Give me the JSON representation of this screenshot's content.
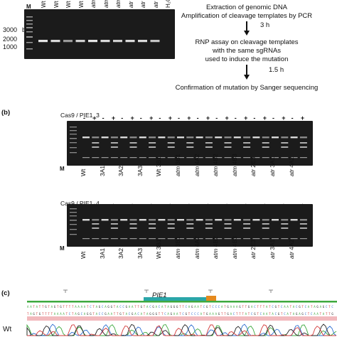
{
  "panel_a": {
    "marker": "M",
    "bp_label": "bp",
    "bp_ticks": [
      "3000",
      "2000",
      "1000"
    ],
    "lanes": [
      "Wt",
      "Wt",
      "Wt",
      "Wt",
      "atm",
      "atm",
      "atm",
      "atr",
      "atr",
      "atr",
      "H₂O"
    ],
    "flow": {
      "step1_line1": "Extraction of genomic DNA",
      "step1_line2": "Amplification of cleavage templates by PCR",
      "time1": "3 h",
      "step2_line1": "RNP assay on cleavage templates",
      "step2_line2": "with the same sgRNAs",
      "step2_line3": "used to induce the mutation",
      "time2": "1.5 h",
      "step3": "Confirmation of mutation by Sanger sequencing"
    }
  },
  "panel_b": {
    "label": "(b)",
    "gel1": {
      "title": "Cas9 / PIE1_3",
      "signs": [
        "-",
        "+",
        "-",
        "+",
        "-",
        "+",
        "-",
        "+",
        "-",
        "+",
        "-",
        "+",
        "-",
        "+",
        "-",
        "+",
        "-",
        "+",
        "-",
        "+",
        "-",
        "+",
        "-",
        "+"
      ],
      "stars": [
        "*",
        "*"
      ]
    },
    "gel2": {
      "title": "Cas9 / PIE1_4",
      "signs": [
        "-",
        "+",
        "-",
        "+",
        "-",
        "+",
        "-",
        "+",
        "-",
        "+",
        "-",
        "+",
        "-",
        "+",
        "-",
        "+",
        "-",
        "+",
        "-",
        "+",
        "-",
        "+",
        "-",
        "+"
      ],
      "stars": [
        "**",
        "**",
        "**",
        "*",
        "**",
        "**",
        "**"
      ]
    },
    "marker": "M",
    "samples": [
      {
        "pre": "",
        "name": "Wt"
      },
      {
        "pre": "",
        "name": "3A1"
      },
      {
        "pre": "",
        "name": "3A2"
      },
      {
        "pre": "",
        "name": "3A3"
      },
      {
        "pre": "Wt",
        "name": "3B1"
      },
      {
        "pre": "atm",
        "name": "3B1"
      },
      {
        "pre": "atm",
        "name": "4A2"
      },
      {
        "pre": "atm",
        "name": "4B2"
      },
      {
        "pre": "atm",
        "name": "4B3"
      },
      {
        "pre": "atr",
        "name": "2E3"
      },
      {
        "pre": "atr",
        "name": "3A1"
      },
      {
        "pre": "atr",
        "name": "4A2"
      }
    ]
  },
  "panel_c": {
    "label": "(c)",
    "gene": "PIE1",
    "row_label": "Wt"
  },
  "colors": {
    "gel_bg": "#1b1b1b",
    "gene_bar": "#2aa6a8",
    "guide_bar": "#e58a1e",
    "conservation": "#3ea93e",
    "highlight": "#f2b9bd"
  }
}
